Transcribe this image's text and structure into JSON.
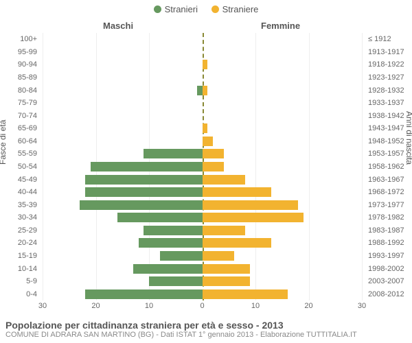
{
  "chart": {
    "type": "population-pyramid",
    "legend": {
      "male": {
        "label": "Stranieri",
        "color": "#66995f"
      },
      "female": {
        "label": "Straniere",
        "color": "#f2b330"
      }
    },
    "columns": {
      "left": "Maschi",
      "right": "Femmine"
    },
    "axis": {
      "left_title": "Fasce di età",
      "right_title": "Anni di nascita",
      "x_max": 30,
      "x_ticks": [
        30,
        20,
        10,
        0,
        10,
        20,
        30
      ],
      "grid_color": "#eeeeee",
      "center_line_color": "#888833"
    },
    "style": {
      "background": "#ffffff",
      "bar_gap": 0.25,
      "font_family": "Arial",
      "label_fontsize": 11,
      "legend_fontsize": 13,
      "header_fontsize": 13
    },
    "rows": [
      {
        "age": "100+",
        "birth": "≤ 1912",
        "m": 0,
        "f": 0
      },
      {
        "age": "95-99",
        "birth": "1913-1917",
        "m": 0,
        "f": 0
      },
      {
        "age": "90-94",
        "birth": "1918-1922",
        "m": 0,
        "f": 1
      },
      {
        "age": "85-89",
        "birth": "1923-1927",
        "m": 0,
        "f": 0
      },
      {
        "age": "80-84",
        "birth": "1928-1932",
        "m": 1,
        "f": 1
      },
      {
        "age": "75-79",
        "birth": "1933-1937",
        "m": 0,
        "f": 0
      },
      {
        "age": "70-74",
        "birth": "1938-1942",
        "m": 0,
        "f": 0
      },
      {
        "age": "65-69",
        "birth": "1943-1947",
        "m": 0,
        "f": 1
      },
      {
        "age": "60-64",
        "birth": "1948-1952",
        "m": 0,
        "f": 2
      },
      {
        "age": "55-59",
        "birth": "1953-1957",
        "m": 11,
        "f": 4
      },
      {
        "age": "50-54",
        "birth": "1958-1962",
        "m": 21,
        "f": 4
      },
      {
        "age": "45-49",
        "birth": "1963-1967",
        "m": 22,
        "f": 8
      },
      {
        "age": "40-44",
        "birth": "1968-1972",
        "m": 22,
        "f": 13
      },
      {
        "age": "35-39",
        "birth": "1973-1977",
        "m": 23,
        "f": 18
      },
      {
        "age": "30-34",
        "birth": "1978-1982",
        "m": 16,
        "f": 19
      },
      {
        "age": "25-29",
        "birth": "1983-1987",
        "m": 11,
        "f": 8
      },
      {
        "age": "20-24",
        "birth": "1988-1992",
        "m": 12,
        "f": 13
      },
      {
        "age": "15-19",
        "birth": "1993-1997",
        "m": 8,
        "f": 6
      },
      {
        "age": "10-14",
        "birth": "1998-2002",
        "m": 13,
        "f": 9
      },
      {
        "age": "5-9",
        "birth": "2003-2007",
        "m": 10,
        "f": 9
      },
      {
        "age": "0-4",
        "birth": "2008-2012",
        "m": 22,
        "f": 16
      }
    ],
    "footer": {
      "title": "Popolazione per cittadinanza straniera per età e sesso - 2013",
      "sub": "COMUNE DI ADRARA SAN MARTINO (BG) - Dati ISTAT 1° gennaio 2013 - Elaborazione TUTTITALIA.IT"
    }
  }
}
